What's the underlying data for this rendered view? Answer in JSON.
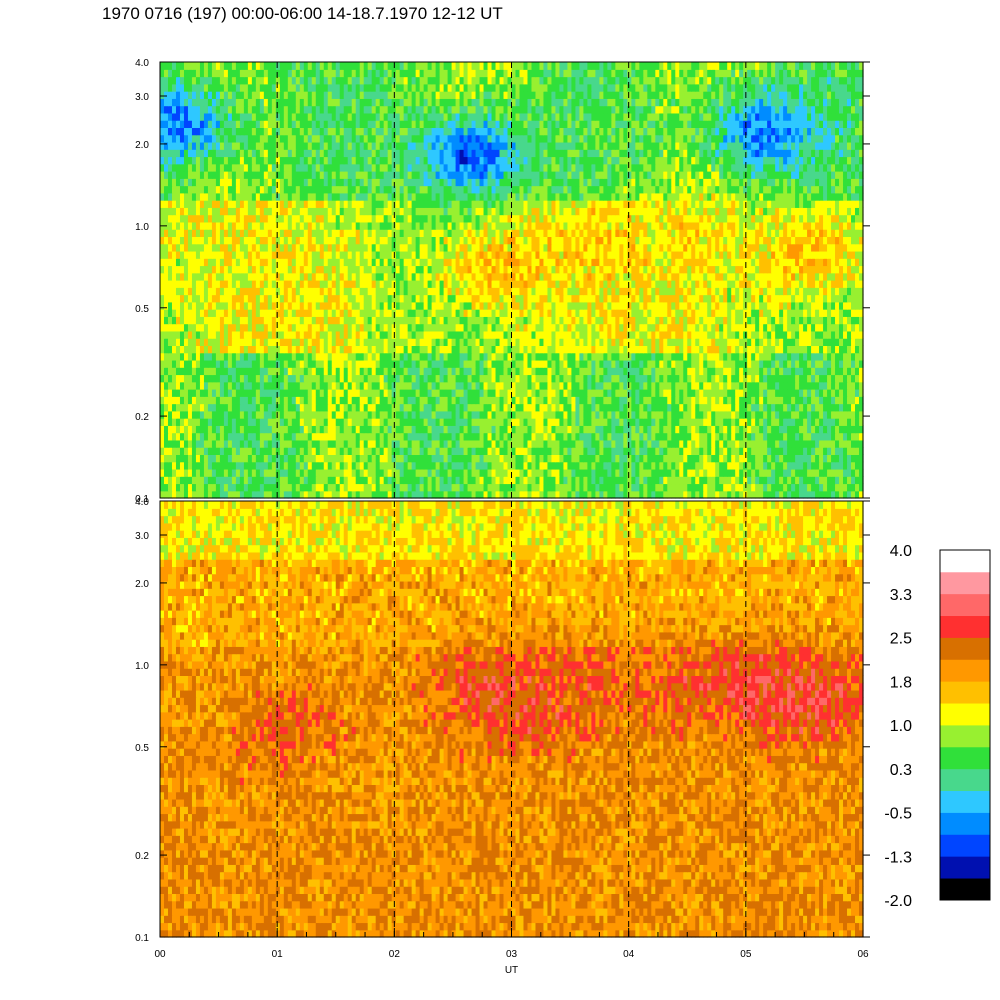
{
  "chart_data": {
    "type": "heatmap",
    "title": "1970 0716 (197) 00:00-06:00 14-18.7.1970  12-12 UT",
    "xlabel": "UT",
    "x_range": [
      0,
      6
    ],
    "x_tick_labels": [
      "00",
      "01",
      "02",
      "03",
      "04",
      "05",
      "06"
    ],
    "x_minor_step": 0.25,
    "y_scale": "log",
    "y_range": [
      0.1,
      4.0
    ],
    "y_tick_values": [
      0.1,
      0.2,
      0.5,
      1.0,
      2.0,
      3.0,
      4.0
    ],
    "y_tick_labels": [
      "0.1",
      "0.2",
      "0.5",
      "1.0",
      "2.0",
      "3.0",
      "4.0"
    ],
    "hour_marker_lines": [
      1,
      2,
      3,
      4,
      5
    ],
    "panels": [
      {
        "id": "upper",
        "features": [
          {
            "band": "blue",
            "x": 0.15,
            "y": 2.4,
            "level": -0.8
          },
          {
            "band": "blue",
            "x": 2.65,
            "y": 1.8,
            "level": -1.0
          },
          {
            "band": "blue",
            "x": 5.15,
            "y": 2.2,
            "level": -0.8
          },
          {
            "band": "orange",
            "x": 2.9,
            "y": 0.7,
            "level": 1.6
          },
          {
            "band": "orange",
            "x": 3.7,
            "y": 0.85,
            "level": 1.5
          },
          {
            "band": "orange",
            "x": 4.5,
            "y": 0.9,
            "level": 1.4
          },
          {
            "band": "orange",
            "x": 5.5,
            "y": 0.8,
            "level": 1.6
          },
          {
            "band": "orange",
            "x": 1.2,
            "y": 0.5,
            "level": 1.3
          }
        ]
      },
      {
        "id": "lower",
        "features": [
          {
            "band": "red",
            "x": 2.8,
            "y": 0.85,
            "level": 2.6
          },
          {
            "band": "red",
            "x": 3.15,
            "y": 0.7,
            "level": 2.6
          },
          {
            "band": "red",
            "x": 3.6,
            "y": 0.85,
            "level": 2.5
          },
          {
            "band": "red",
            "x": 4.5,
            "y": 0.85,
            "level": 2.4
          },
          {
            "band": "red",
            "x": 5.1,
            "y": 0.85,
            "level": 2.8
          },
          {
            "band": "red",
            "x": 5.6,
            "y": 0.75,
            "level": 2.8
          },
          {
            "band": "red",
            "x": 1.15,
            "y": 0.55,
            "level": 2.5
          },
          {
            "band": "dark-orange",
            "x": 1.6,
            "y": 0.4,
            "level": 2.0
          }
        ]
      }
    ],
    "colorbar": {
      "tick_labels": [
        "4.0",
        "3.3",
        "2.5",
        "1.8",
        "1.0",
        "0.3",
        "-0.5",
        "-1.3",
        "-2.0"
      ],
      "range": [
        -2.0,
        4.0
      ],
      "colors": [
        "#000000",
        "#0010b0",
        "#0045ff",
        "#008cff",
        "#2ec8ff",
        "#48d88c",
        "#30e03a",
        "#98f030",
        "#ffff00",
        "#ffc000",
        "#ff9800",
        "#d87000",
        "#ff3030",
        "#ff6868",
        "#ff98a0",
        "#ffffff"
      ]
    }
  }
}
